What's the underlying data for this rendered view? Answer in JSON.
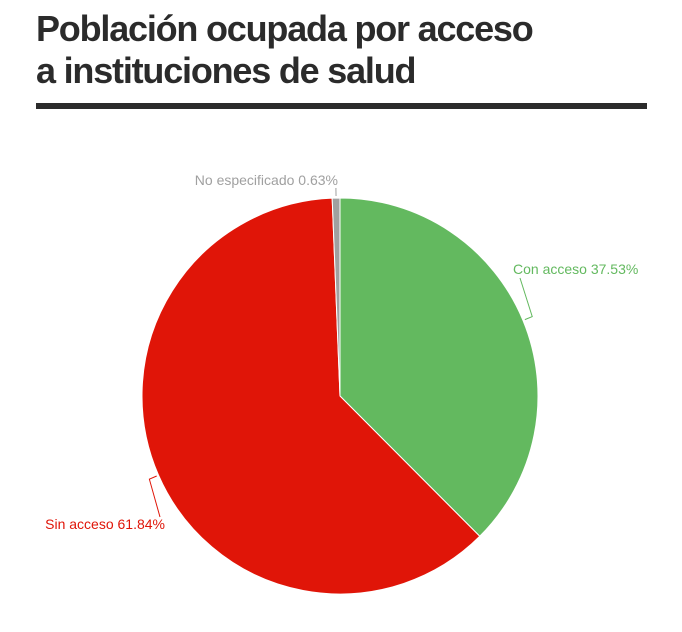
{
  "chart_data": {
    "type": "pie",
    "title": "Población ocupada por acceso a instituciones de salud",
    "categories": [
      "Con acceso",
      "Sin acceso",
      "No especificado"
    ],
    "values": [
      37.53,
      61.84,
      0.63
    ],
    "value_labels": [
      "37.53%",
      "61.84%",
      "0.63%"
    ],
    "colors": [
      "#63b95f",
      "#e01508",
      "#a0a0a0"
    ]
  }
}
